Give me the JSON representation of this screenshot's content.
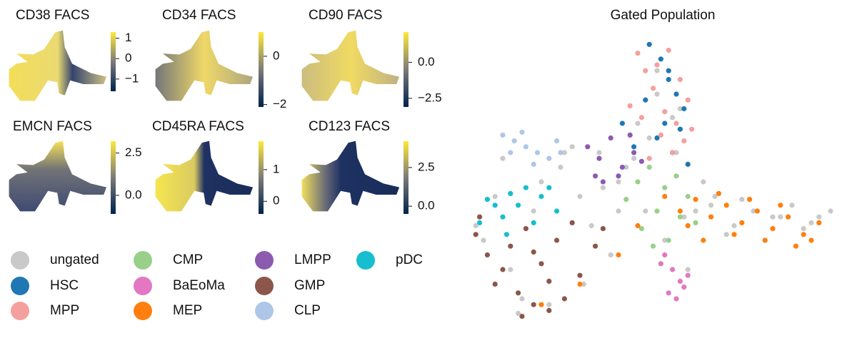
{
  "chart_data": [
    {
      "type": "scatter",
      "title": "CD38 FACS",
      "clim": [
        -1.6,
        1.3
      ],
      "cticks": [
        1,
        0,
        {
          "value": -1,
          "label": "−1"
        }
      ]
    },
    {
      "type": "scatter",
      "title": "CD34 FACS",
      "clim": [
        -2.1,
        1.0
      ],
      "cticks": [
        0,
        {
          "value": -2,
          "label": "−2"
        }
      ]
    },
    {
      "type": "scatter",
      "title": "CD90 FACS",
      "clim": [
        -3.1,
        2.1
      ],
      "cticks": [
        {
          "value": 0,
          "label": "0.0"
        },
        {
          "value": -2.5,
          "label": "−2.5"
        }
      ]
    },
    {
      "type": "scatter",
      "title": "EMCN FACS",
      "clim": [
        -1.1,
        3.2
      ],
      "cticks": [
        2.5,
        {
          "value": 0,
          "label": "0.0"
        }
      ]
    },
    {
      "type": "scatter",
      "title": "CD45RA FACS",
      "clim": [
        -0.4,
        1.9
      ],
      "cticks": [
        1,
        0
      ]
    },
    {
      "type": "scatter",
      "title": "CD123 FACS",
      "clim": [
        -0.5,
        4.2
      ],
      "cticks": [
        2.5,
        {
          "value": 0,
          "label": "0.0"
        }
      ]
    },
    {
      "type": "scatter",
      "title": "Gated Population",
      "xlim": [
        0,
        100
      ],
      "ylim": [
        0,
        100
      ],
      "series": [
        {
          "name": "ungated",
          "color": "#c9c9c9",
          "x": [
            5,
            12,
            18,
            25,
            30,
            35,
            40,
            45,
            50,
            55,
            60,
            65,
            70,
            75,
            80,
            85,
            90,
            95,
            8,
            15,
            22,
            33,
            38,
            42,
            48,
            52,
            58,
            62,
            28,
            36,
            44,
            54,
            3,
            20,
            31,
            47,
            57,
            68,
            78,
            88,
            10,
            26,
            40,
            50,
            56,
            64,
            72,
            82,
            92,
            14
          ],
          "y": [
            30,
            20,
            40,
            55,
            45,
            60,
            50,
            70,
            80,
            60,
            40,
            45,
            35,
            40,
            38,
            42,
            36,
            40,
            45,
            10,
            8,
            35,
            25,
            55,
            65,
            30,
            20,
            50,
            62,
            48,
            58,
            72,
            35,
            50,
            15,
            40,
            38,
            32,
            30,
            34,
            58,
            60,
            40,
            88,
            75,
            42,
            44,
            38,
            38,
            5
          ]
        },
        {
          "name": "HSC",
          "color": "#1f77b4",
          "x": [
            48,
            51,
            53,
            55,
            57,
            52,
            50,
            54,
            58,
            44,
            47,
            53,
            56,
            41
          ],
          "y": [
            97,
            92,
            85,
            80,
            75,
            70,
            65,
            60,
            56,
            62,
            78,
            88,
            68,
            70
          ]
        },
        {
          "name": "MPP",
          "color": "#f4a09e",
          "x": [
            45,
            47,
            50,
            53,
            56,
            58,
            49,
            52,
            55,
            46,
            51,
            57,
            43,
            54,
            48,
            59
          ],
          "y": [
            94,
            88,
            90,
            95,
            85,
            78,
            82,
            74,
            70,
            72,
            66,
            64,
            76,
            60,
            58,
            68
          ]
        },
        {
          "name": "CMP",
          "color": "#98d08a",
          "x": [
            45,
            48,
            52,
            55,
            58,
            42,
            50,
            56,
            46,
            53,
            60,
            49
          ],
          "y": [
            50,
            55,
            48,
            52,
            45,
            44,
            40,
            38,
            34,
            30,
            36,
            28
          ]
        },
        {
          "name": "BaEoMa",
          "color": "#e377c2",
          "x": [
            52,
            54,
            56,
            53,
            55,
            57,
            51,
            58
          ],
          "y": [
            25,
            20,
            16,
            12,
            10,
            14,
            22,
            18
          ]
        },
        {
          "name": "MEP",
          "color": "#ff7f0e",
          "x": [
            52,
            56,
            60,
            64,
            68,
            72,
            76,
            80,
            84,
            88,
            92,
            62,
            70,
            78,
            86,
            58,
            66,
            74,
            82,
            90,
            40,
            30,
            20,
            45
          ],
          "y": [
            45,
            40,
            44,
            38,
            42,
            36,
            40,
            34,
            38,
            32,
            36,
            30,
            32,
            30,
            28,
            35,
            46,
            44,
            42,
            30,
            25,
            15,
            8,
            35
          ]
        },
        {
          "name": "LMPP",
          "color": "#8c5bb0",
          "x": [
            32,
            35,
            38,
            41,
            44,
            36,
            40,
            43,
            34,
            46
          ],
          "y": [
            62,
            58,
            65,
            55,
            60,
            50,
            52,
            66,
            52,
            57
          ]
        },
        {
          "name": "GMP",
          "color": "#8c564b",
          "x": [
            3,
            6,
            10,
            14,
            18,
            22,
            26,
            30,
            34,
            8,
            12,
            16,
            20,
            24,
            28,
            4,
            36,
            15,
            22,
            18
          ],
          "y": [
            32,
            25,
            20,
            12,
            8,
            6,
            10,
            18,
            28,
            15,
            28,
            34,
            22,
            30,
            36,
            38,
            34,
            4,
            16,
            26
          ]
        },
        {
          "name": "CLP",
          "color": "#aec7e8",
          "x": [
            10,
            13,
            16,
            19,
            22,
            25,
            12,
            18,
            24,
            15
          ],
          "y": [
            66,
            64,
            62,
            60,
            58,
            60,
            60,
            56,
            64,
            67
          ]
        },
        {
          "name": "pDC",
          "color": "#17becf",
          "x": [
            4,
            8,
            12,
            16,
            20,
            24,
            6,
            10,
            14,
            18,
            22,
            11
          ],
          "y": [
            36,
            42,
            46,
            48,
            45,
            40,
            44,
            38,
            42,
            36,
            48,
            32
          ]
        }
      ]
    }
  ]
}
